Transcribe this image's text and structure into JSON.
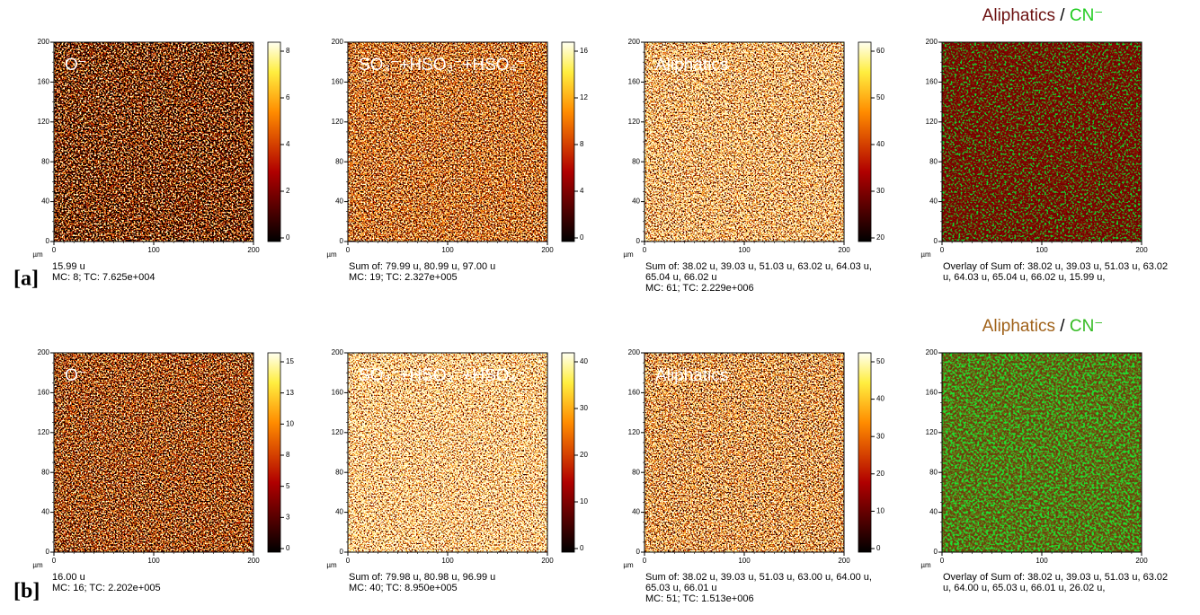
{
  "rows": [
    {
      "label": "[a]",
      "panels": [
        {
          "title": "O⁻",
          "caption": [
            "15.99 u",
            "MC:    8; TC: 7.625e+004"
          ],
          "colorbar_ticks": [
            "0",
            "2",
            "4",
            "6",
            "8"
          ]
        },
        {
          "title": "SO₃⁻+HSO₃⁻+HSO₄⁻",
          "caption": [
            "Sum of: 79.99 u, 80.99 u, 97.00 u",
            "MC:    19; TC: 2.327e+005"
          ],
          "colorbar_ticks": [
            "0",
            "4",
            "8",
            "12",
            "16"
          ]
        },
        {
          "title": "Aliphatics",
          "caption": [
            "Sum of: 38.02 u, 39.03 u, 51.03 u, 63.02 u, 64.03 u,",
            "65.04 u, 66.02 u",
            "MC:    61; TC: 2.229e+006"
          ],
          "colorbar_ticks": [
            "20",
            "30",
            "40",
            "50",
            "60"
          ]
        },
        {
          "title_parts": [
            "Aliphatics",
            "/",
            "CN⁻"
          ],
          "caption": [
            "Overlay of Sum of: 38.02 u, 39.03 u, 51.03 u, 63.02",
            "u, 64.03 u, 65.04 u, 66.02 u, 15.99 u,"
          ]
        }
      ]
    },
    {
      "label": "[b]",
      "panels": [
        {
          "title": "O⁻",
          "caption": [
            "16.00 u",
            "MC:    16; TC: 2.202e+005"
          ],
          "colorbar_ticks": [
            "0",
            "3",
            "5",
            "8",
            "10",
            "13",
            "15"
          ]
        },
        {
          "title": "SO₃⁻+HSO₃⁻+HSO₄⁻",
          "caption": [
            "Sum of: 79.98 u, 80.98 u, 96.99 u",
            "MC:    40; TC: 8.950e+005"
          ],
          "colorbar_ticks": [
            "0",
            "10",
            "20",
            "30",
            "40"
          ]
        },
        {
          "title": "Aliphatics",
          "caption": [
            "Sum of: 38.02 u, 39.03 u, 51.03 u, 63.00 u, 64.00 u,",
            "65.03 u, 66.01 u",
            "MC:    51; TC: 1.513e+006"
          ],
          "colorbar_ticks": [
            "0",
            "10",
            "20",
            "30",
            "40",
            "50"
          ]
        },
        {
          "title_parts": [
            "Aliphatics",
            "/",
            "CN⁻"
          ],
          "caption": [
            "Overlay of Sum of: 38.02 u, 39.03 u, 51.03 u, 63.02",
            "u, 64.00 u, 65.03 u, 66.01 u, 26.02 u,"
          ]
        }
      ]
    }
  ],
  "axis": {
    "unit": "µm",
    "x_ticks": [
      "0",
      "100",
      "200"
    ],
    "y_ticks": [
      "0",
      "40",
      "80",
      "120",
      "160",
      "200"
    ]
  }
}
